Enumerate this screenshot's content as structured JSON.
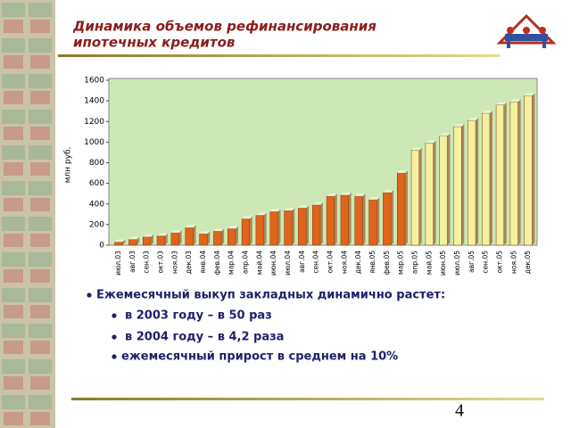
{
  "chart_data": {
    "type": "bar",
    "title_lines": [
      "Динамика объемов рефинансирования",
      "ипотечных кредитов"
    ],
    "y_label": "млн руб.",
    "categories": [
      "июл.03",
      "авг.03",
      "сен.03",
      "окт.03",
      "ноя.03",
      "дек.03",
      "янв.04",
      "фев.04",
      "мар.04",
      "апр.04",
      "май.04",
      "июн.04",
      "июл.04",
      "авг.04",
      "сен.04",
      "окт.04",
      "ноя.04",
      "дек.04",
      "янв.05",
      "фев.05",
      "мар.05",
      "апр.05",
      "май.05",
      "июн.05",
      "июл.05",
      "авг.05",
      "сен.05",
      "окт.05",
      "ноя.05",
      "дек.05"
    ],
    "values": [
      30,
      55,
      80,
      90,
      120,
      170,
      110,
      135,
      160,
      255,
      290,
      325,
      335,
      360,
      390,
      475,
      485,
      475,
      440,
      510,
      700,
      920,
      990,
      1060,
      1150,
      1210,
      1280,
      1360,
      1390,
      1450
    ],
    "colors": [
      "#e0641a",
      "#e0641a",
      "#e0641a",
      "#e0641a",
      "#e0641a",
      "#e0641a",
      "#e0641a",
      "#e0641a",
      "#e0641a",
      "#e0641a",
      "#e0641a",
      "#e0641a",
      "#e0641a",
      "#e0641a",
      "#e0641a",
      "#e0641a",
      "#e0641a",
      "#e0641a",
      "#e0641a",
      "#e0641a",
      "#e0641a",
      "#f4f0a0",
      "#f4f0a0",
      "#f4f0a0",
      "#f4f0a0",
      "#f4f0a0",
      "#f4f0a0",
      "#f4f0a0",
      "#f4f0a0",
      "#f4f0a0"
    ],
    "ylim": [
      0,
      1600
    ],
    "yticks": [
      0,
      200,
      400,
      600,
      800,
      1000,
      1200,
      1400,
      1600
    ],
    "plot_color": "#cde8b4"
  },
  "bullets": [
    "Ежемесячный выкуп закладных динамично растет:",
    "в 2003 году – в 50 раз",
    "в 2004 году – в 4,2 раза",
    "ежемесячный прирост в среднем на 10%"
  ],
  "page_number": "4"
}
